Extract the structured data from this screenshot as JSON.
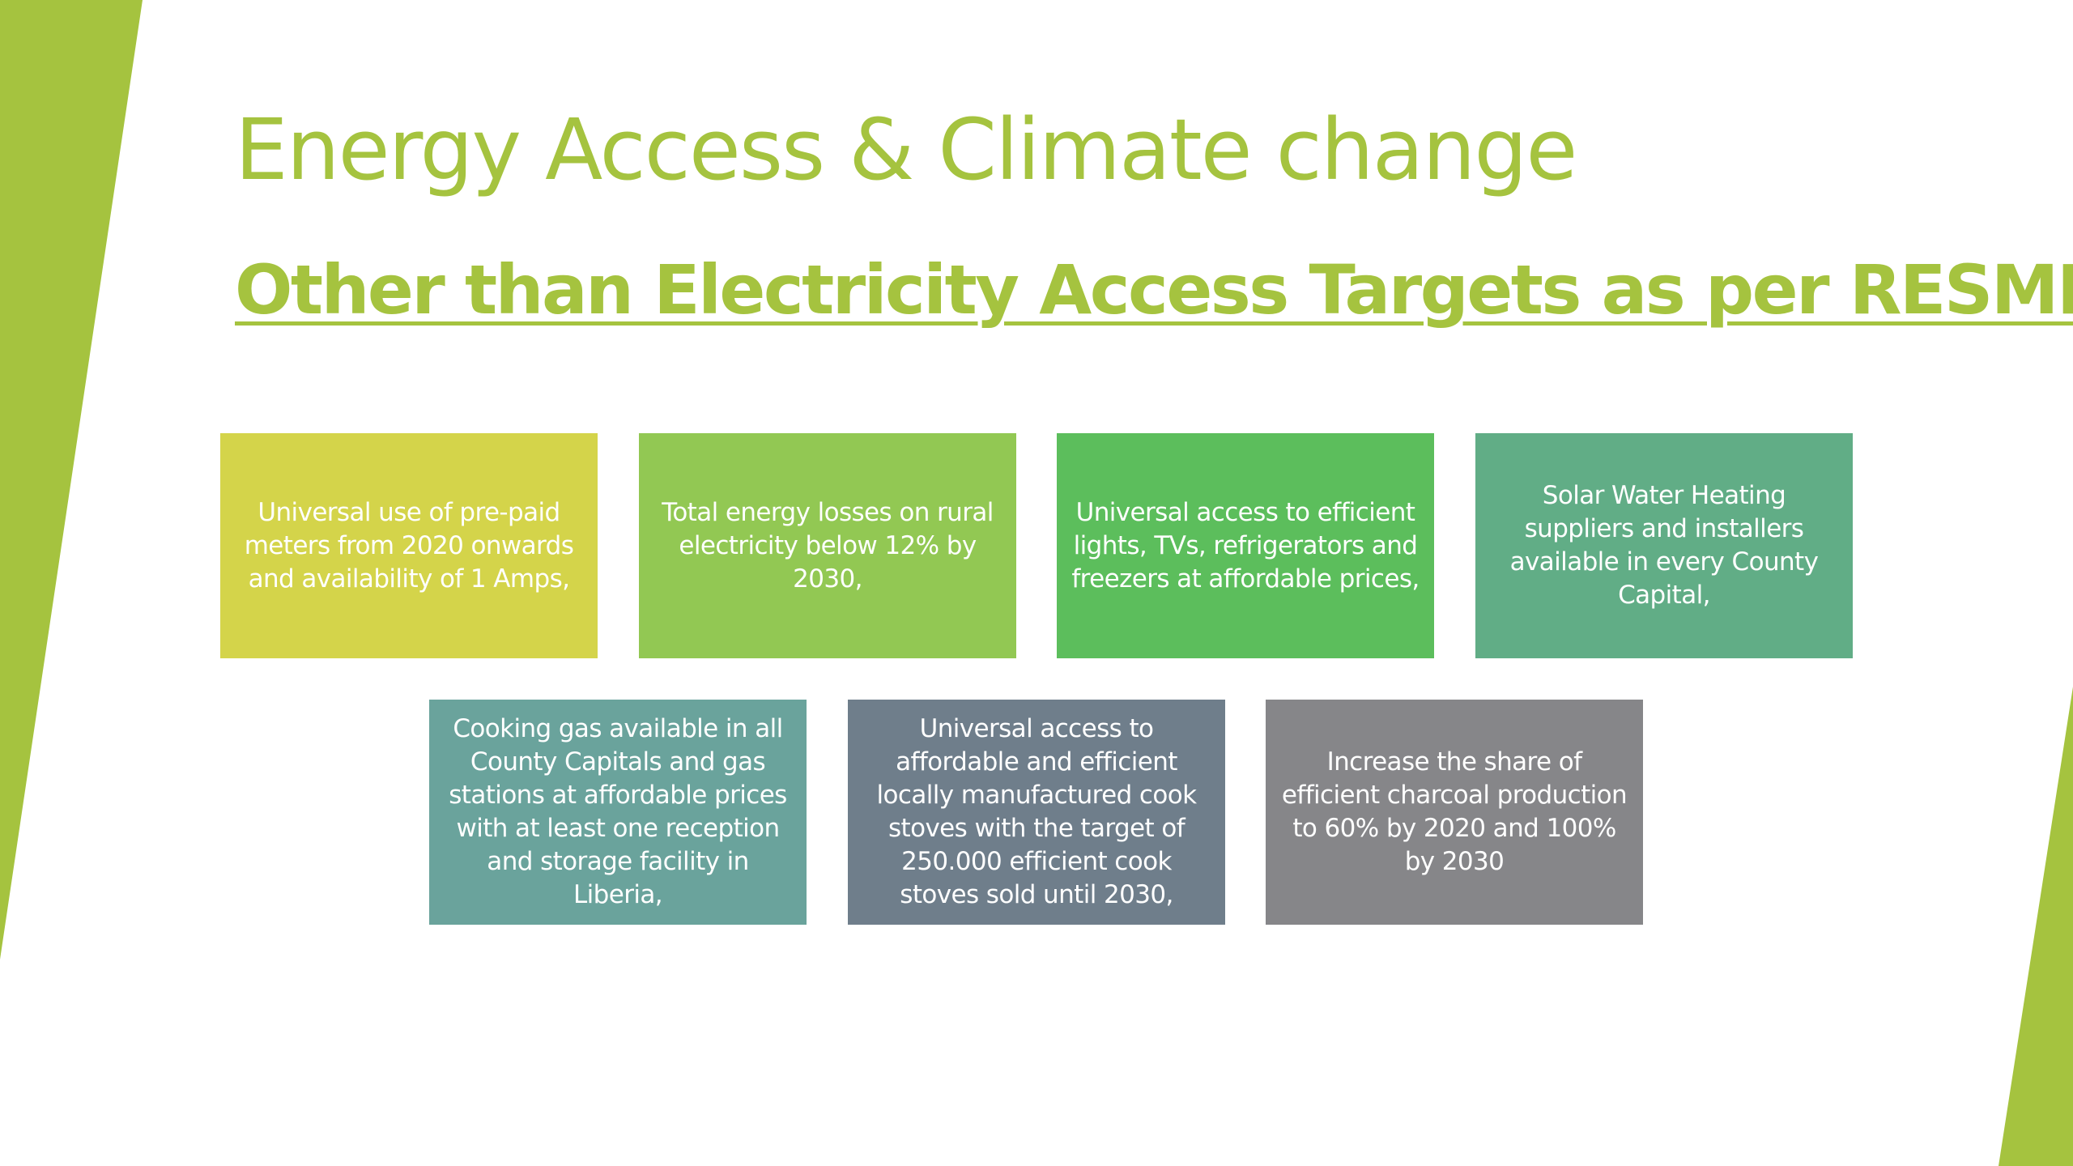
{
  "slide": {
    "title": "Energy Access & Climate change",
    "subtitle": "Other than Electricity Access Targets as per RESMP:",
    "accent_color": "#a5c33f",
    "targets": [
      {
        "text": "Universal use of pre-paid meters from 2020 onwards and availability of 1 Amps,",
        "color": "#d4d44a"
      },
      {
        "text": "Total energy losses on rural electricity below 12% by 2030,",
        "color": "#92c853"
      },
      {
        "text": "Universal access to efficient lights, TVs, refrigerators and freezers at affordable prices,",
        "color": "#5cbe5c"
      },
      {
        "text": "Solar Water Heating suppliers and installers available in every County Capital,",
        "color": "#61ad86"
      },
      {
        "text": "Cooking gas available in all County Capitals and gas stations at affordable prices with at least one reception and storage facility in Liberia,",
        "color": "#6aa39c"
      },
      {
        "text": "Universal access to affordable and efficient locally manufactured cook stoves with the target of 250.000 efficient cook stoves sold until 2030,",
        "color": "#6f7e8b"
      },
      {
        "text": "Increase the share of efficient charcoal production to 60% by 2020 and 100% by 2030",
        "color": "#868689"
      }
    ]
  }
}
